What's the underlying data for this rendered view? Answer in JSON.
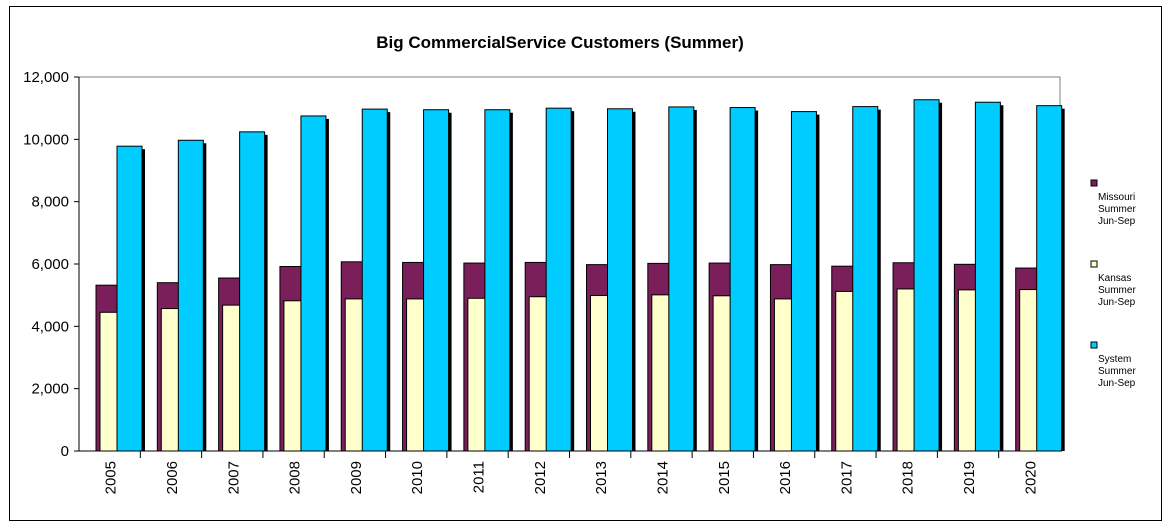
{
  "chart_data": {
    "type": "bar",
    "title": "Big CommercialService Customers (Summer)",
    "xlabel": "",
    "ylabel": "",
    "categories": [
      "2005",
      "2006",
      "2007",
      "2008",
      "2009",
      "2010",
      "2011",
      "2012",
      "2013",
      "2014",
      "2015",
      "2016",
      "2017",
      "2018",
      "2019",
      "2020"
    ],
    "ylim": [
      0,
      12000
    ],
    "yticks": [
      0,
      2000,
      4000,
      6000,
      8000,
      10000,
      12000
    ],
    "ytick_labels": [
      "0",
      "2,000",
      "4,000",
      "6,000",
      "8,000",
      "10,000",
      "12,000"
    ],
    "legend_position": "right",
    "grid": false,
    "series": [
      {
        "name": "Missouri Summer Jun-Sep",
        "legend_lines": [
          "Missouri",
          "Summer",
          "Jun-Sep"
        ],
        "color": "#7B1F5A",
        "values": [
          5320,
          5400,
          5550,
          5920,
          6070,
          6050,
          6030,
          6050,
          5980,
          6020,
          6030,
          5980,
          5930,
          6040,
          5990,
          5870
        ]
      },
      {
        "name": "Kansas Summer Jun-Sep",
        "legend_lines": [
          "Kansas",
          "Summer",
          "Jun-Sep"
        ],
        "color": "#FFFFCC",
        "values": [
          4450,
          4570,
          4680,
          4820,
          4880,
          4880,
          4900,
          4950,
          4990,
          5010,
          4980,
          4880,
          5120,
          5200,
          5170,
          5180
        ]
      },
      {
        "name": "System Summer Jun-Sep",
        "legend_lines": [
          "System",
          "Summer",
          "Jun-Sep"
        ],
        "color": "#00CCFF",
        "values": [
          9780,
          9970,
          10240,
          10750,
          10970,
          10950,
          10950,
          11000,
          10980,
          11040,
          11020,
          10890,
          11050,
          11270,
          11190,
          11080
        ]
      }
    ]
  }
}
